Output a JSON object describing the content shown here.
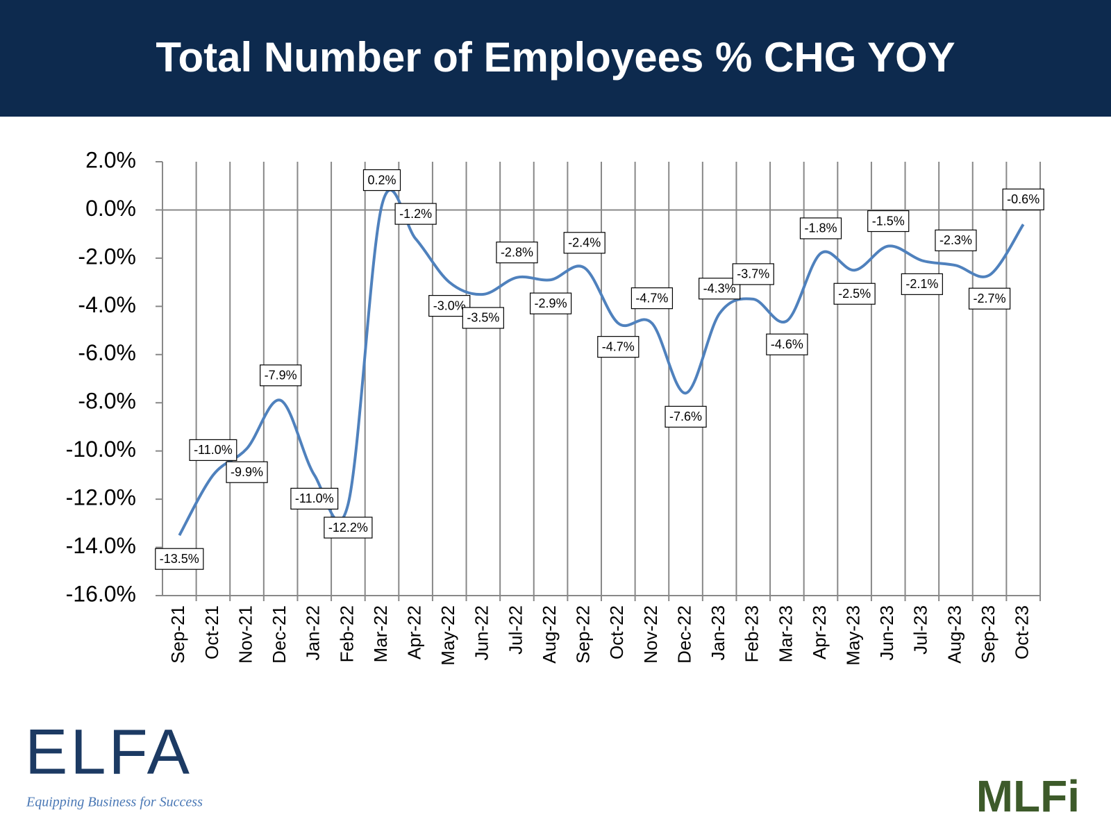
{
  "chart_data": {
    "type": "line",
    "title": "Total Number of Employees % CHG YOY",
    "categories": [
      "Sep-21",
      "Oct-21",
      "Nov-21",
      "Dec-21",
      "Jan-22",
      "Feb-22",
      "Mar-22",
      "Apr-22",
      "May-22",
      "Jun-22",
      "Jul-22",
      "Aug-22",
      "Sep-22",
      "Oct-22",
      "Nov-22",
      "Dec-22",
      "Jan-23",
      "Feb-23",
      "Mar-23",
      "Apr-23",
      "May-23",
      "Jun-23",
      "Jul-23",
      "Aug-23",
      "Sep-23",
      "Oct-23"
    ],
    "values": [
      -13.5,
      -11.0,
      -9.9,
      -7.9,
      -11.0,
      -12.2,
      0.2,
      -1.2,
      -3.0,
      -3.5,
      -2.8,
      -2.9,
      -2.4,
      -4.7,
      -4.7,
      -7.6,
      -4.3,
      -3.7,
      -4.6,
      -1.8,
      -2.5,
      -1.5,
      -2.1,
      -2.3,
      -2.7,
      -0.6
    ],
    "value_labels": [
      "-13.5%",
      "-11.0%",
      "-9.9%",
      "-7.9%",
      "-11.0%",
      "-12.2%",
      "0.2%",
      "-1.2%",
      "-3.0%",
      "-3.5%",
      "-2.8%",
      "-2.9%",
      "-2.4%",
      "-4.7%",
      "-4.7%",
      "-7.6%",
      "-4.3%",
      "-3.7%",
      "-4.6%",
      "-1.8%",
      "-2.5%",
      "-1.5%",
      "-2.1%",
      "-2.3%",
      "-2.7%",
      "-0.6%"
    ],
    "color": "#4f81bd",
    "ylim": [
      -16,
      2
    ],
    "yticks": [
      {
        "value": 2,
        "label": "2.0%"
      },
      {
        "value": 0,
        "label": "0.0%"
      },
      {
        "value": -2,
        "label": "-2.0%"
      },
      {
        "value": -4,
        "label": "-4.0%"
      },
      {
        "value": -6,
        "label": "-6.0%"
      },
      {
        "value": -8,
        "label": "-8.0%"
      },
      {
        "value": -10,
        "label": "-10.0%"
      },
      {
        "value": -12,
        "label": "-12.0%"
      },
      {
        "value": -14,
        "label": "-14.0%"
      },
      {
        "value": -16,
        "label": "-16.0%"
      }
    ],
    "grid": "x"
  },
  "logos": {
    "left": "ELFA",
    "left_tagline": "Equipping Business for Success",
    "right": "MLFi"
  }
}
